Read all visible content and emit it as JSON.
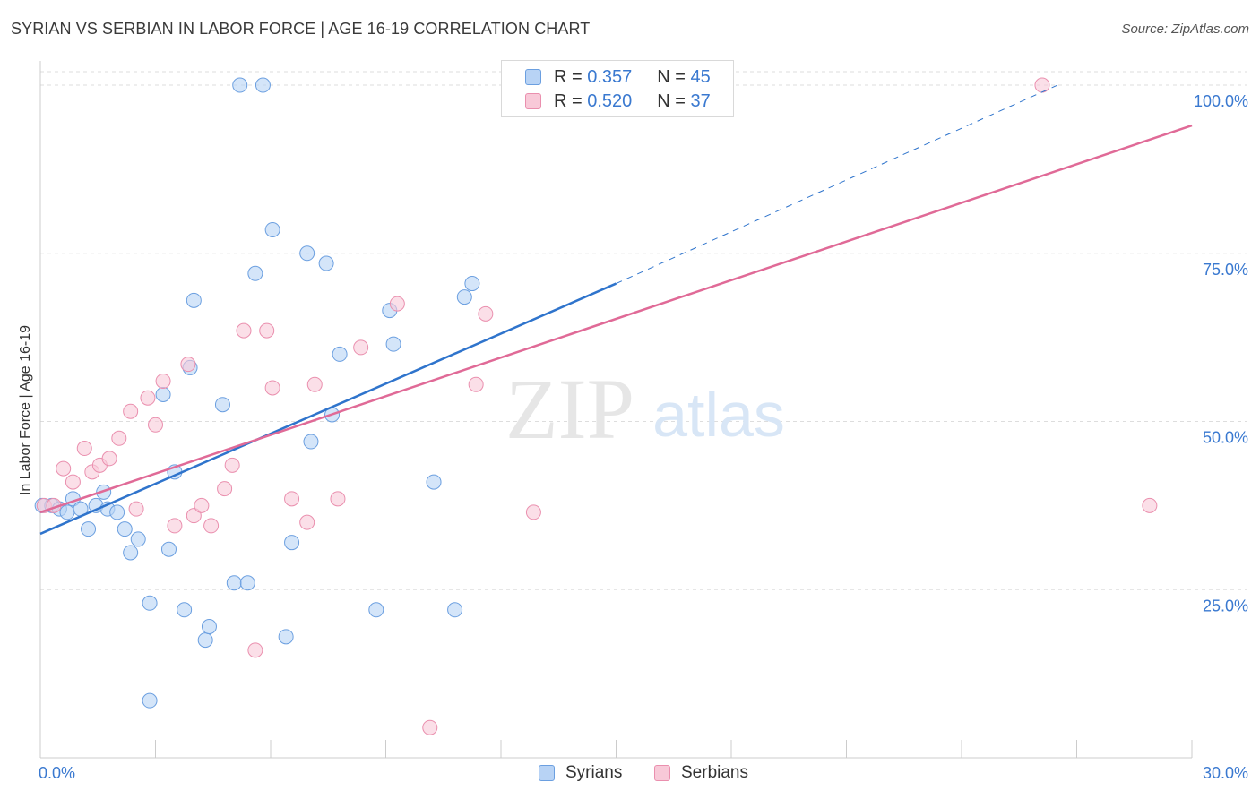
{
  "header": {
    "title": "SYRIAN VS SERBIAN IN LABOR FORCE | AGE 16-19 CORRELATION CHART",
    "source": "Source: ZipAtlas.com"
  },
  "legend_top": {
    "syrians": {
      "r_label": "R =",
      "r_value": "0.357",
      "n_label": "N =",
      "n_value": "45"
    },
    "serbians": {
      "r_label": "R =",
      "r_value": "0.520",
      "n_label": "N =",
      "n_value": "37"
    }
  },
  "legend_bottom": {
    "syrians": "Syrians",
    "serbians": "Serbians"
  },
  "watermark": {
    "zip": "ZIP",
    "atlas": "atlas"
  },
  "colors": {
    "syrians_fill": "#b8d3f5",
    "syrians_stroke": "#6b9fe0",
    "syrians_line": "#2f74cc",
    "serbians_fill": "#f8c9d8",
    "serbians_stroke": "#ea8fae",
    "serbians_line": "#e06a97",
    "axis_text": "#3a79d0",
    "grid": "#dddddd"
  },
  "chart_data": {
    "type": "scatter",
    "title": "SYRIAN VS SERBIAN IN LABOR FORCE | AGE 16-19 CORRELATION CHART",
    "xlabel": "",
    "ylabel": "In Labor Force | Age 16-19",
    "xlim": [
      0,
      30
    ],
    "ylim": [
      0,
      102
    ],
    "x_tick_labels": [
      "0.0%",
      "30.0%"
    ],
    "y_ticks": [
      25,
      50,
      75,
      100
    ],
    "y_tick_labels": [
      "25.0%",
      "50.0%",
      "75.0%",
      "100.0%"
    ],
    "grid": true,
    "legend_position": "top-center",
    "series": [
      {
        "name": "Syrians",
        "R": 0.357,
        "N": 45,
        "points": [
          [
            0.05,
            37.5
          ],
          [
            0.3,
            37.5
          ],
          [
            0.5,
            37.0
          ],
          [
            0.7,
            36.5
          ],
          [
            0.85,
            38.5
          ],
          [
            1.05,
            37.0
          ],
          [
            1.25,
            34.0
          ],
          [
            1.45,
            37.5
          ],
          [
            1.65,
            39.5
          ],
          [
            1.75,
            37.0
          ],
          [
            2.0,
            36.5
          ],
          [
            2.2,
            34.0
          ],
          [
            2.35,
            30.5
          ],
          [
            2.55,
            32.5
          ],
          [
            2.85,
            23.0
          ],
          [
            2.85,
            8.5
          ],
          [
            3.2,
            54.0
          ],
          [
            3.35,
            31.0
          ],
          [
            3.5,
            42.5
          ],
          [
            3.75,
            22.0
          ],
          [
            3.9,
            58.0
          ],
          [
            4.0,
            68.0
          ],
          [
            4.3,
            17.5
          ],
          [
            4.4,
            19.5
          ],
          [
            4.75,
            52.5
          ],
          [
            5.05,
            26.0
          ],
          [
            5.2,
            100.0
          ],
          [
            5.4,
            26.0
          ],
          [
            5.6,
            72.0
          ],
          [
            5.8,
            100.0
          ],
          [
            6.05,
            78.5
          ],
          [
            6.4,
            18.0
          ],
          [
            6.55,
            32.0
          ],
          [
            6.95,
            75.0
          ],
          [
            7.05,
            47.0
          ],
          [
            7.45,
            73.5
          ],
          [
            7.6,
            51.0
          ],
          [
            7.8,
            60.0
          ],
          [
            8.75,
            22.0
          ],
          [
            9.1,
            66.5
          ],
          [
            9.2,
            61.5
          ],
          [
            10.25,
            41.0
          ],
          [
            10.8,
            22.0
          ],
          [
            11.05,
            68.5
          ],
          [
            11.25,
            70.5
          ]
        ]
      },
      {
        "name": "Serbians",
        "R": 0.52,
        "N": 37,
        "points": [
          [
            0.1,
            37.5
          ],
          [
            0.35,
            37.5
          ],
          [
            0.6,
            43.0
          ],
          [
            0.85,
            41.0
          ],
          [
            1.15,
            46.0
          ],
          [
            1.35,
            42.5
          ],
          [
            1.55,
            43.5
          ],
          [
            1.8,
            44.5
          ],
          [
            2.05,
            47.5
          ],
          [
            2.35,
            51.5
          ],
          [
            2.5,
            37.0
          ],
          [
            2.8,
            53.5
          ],
          [
            3.0,
            49.5
          ],
          [
            3.2,
            56.0
          ],
          [
            3.5,
            34.5
          ],
          [
            3.85,
            58.5
          ],
          [
            4.0,
            36.0
          ],
          [
            4.2,
            37.5
          ],
          [
            4.45,
            34.5
          ],
          [
            4.8,
            40.0
          ],
          [
            5.0,
            43.5
          ],
          [
            5.3,
            63.5
          ],
          [
            5.6,
            16.0
          ],
          [
            5.9,
            63.5
          ],
          [
            6.05,
            55.0
          ],
          [
            6.55,
            38.5
          ],
          [
            6.95,
            35.0
          ],
          [
            7.15,
            55.5
          ],
          [
            7.75,
            38.5
          ],
          [
            8.35,
            61.0
          ],
          [
            9.3,
            67.5
          ],
          [
            10.15,
            4.5
          ],
          [
            11.35,
            55.5
          ],
          [
            11.6,
            66.0
          ],
          [
            12.85,
            36.5
          ],
          [
            26.1,
            100.0
          ],
          [
            28.9,
            37.5
          ]
        ]
      }
    ],
    "trend_lines": [
      {
        "series": "Syrians",
        "x": [
          0,
          15
        ],
        "y": [
          33.3,
          70.5
        ],
        "style": "solid"
      },
      {
        "series": "Syrians",
        "x": [
          15,
          26.5
        ],
        "y": [
          70.5,
          100.0
        ],
        "style": "dashed"
      },
      {
        "series": "Serbians",
        "x": [
          0,
          30
        ],
        "y": [
          36.5,
          94.0
        ],
        "style": "solid"
      }
    ]
  }
}
